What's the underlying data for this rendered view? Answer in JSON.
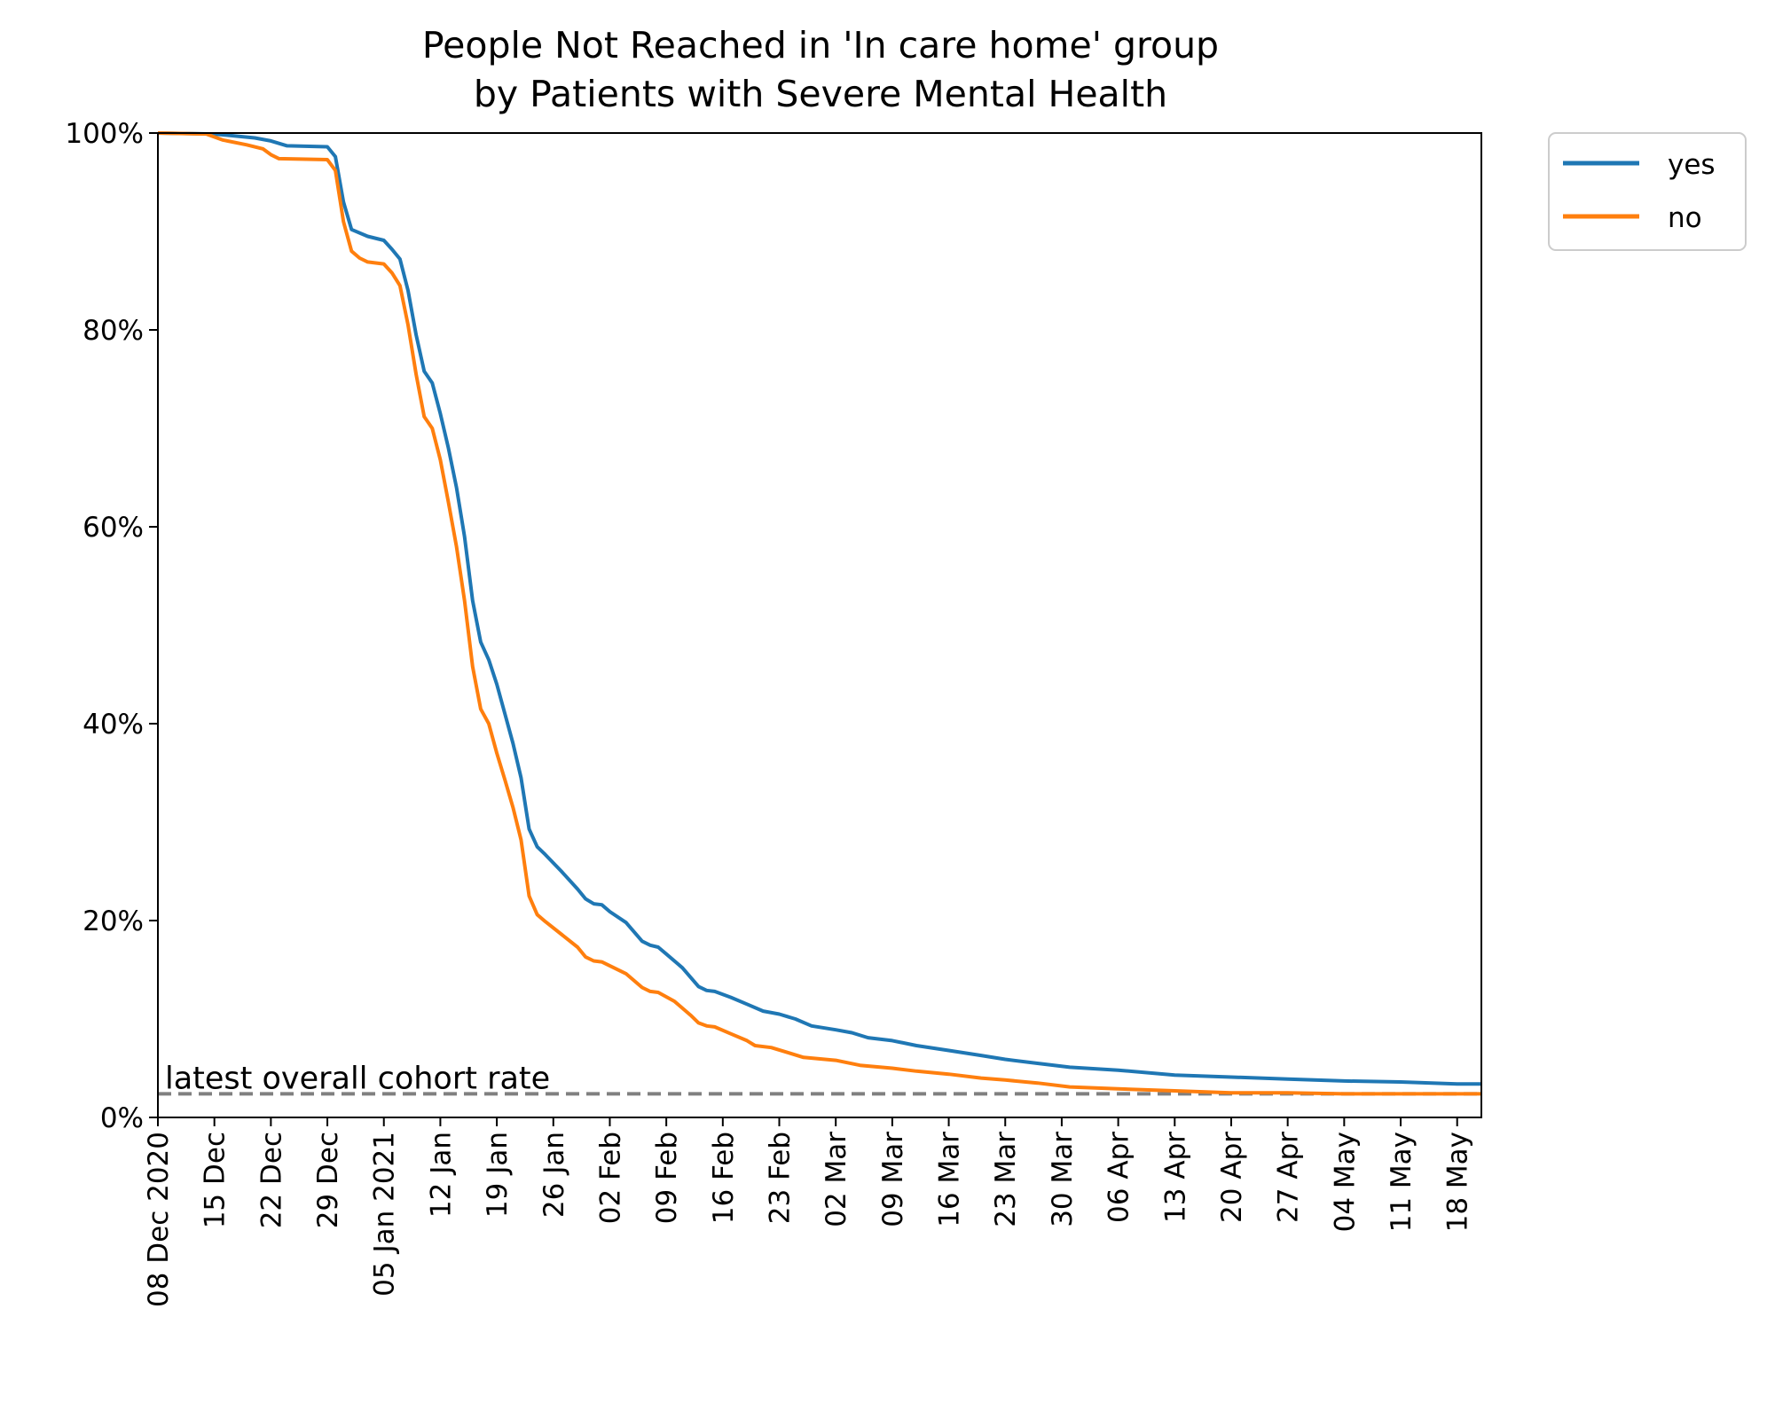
{
  "chart_data": {
    "type": "line",
    "title": [
      "People Not Reached in 'In care home' group",
      "by Patients with Severe Mental Health"
    ],
    "xlabel": "",
    "ylabel": "",
    "x_range": [
      "2020-12-08",
      "2021-05-21"
    ],
    "ylim": [
      0,
      100
    ],
    "y_unit": "%",
    "y_ticks": [
      {
        "value": 0,
        "label": "0%"
      },
      {
        "value": 20,
        "label": "20%"
      },
      {
        "value": 40,
        "label": "40%"
      },
      {
        "value": 60,
        "label": "60%"
      },
      {
        "value": 80,
        "label": "80%"
      },
      {
        "value": 100,
        "label": "100%"
      }
    ],
    "x_ticks": [
      {
        "date": "2020-12-08",
        "label": "08 Dec 2020"
      },
      {
        "date": "2020-12-15",
        "label": "15 Dec"
      },
      {
        "date": "2020-12-22",
        "label": "22 Dec"
      },
      {
        "date": "2020-12-29",
        "label": "29 Dec"
      },
      {
        "date": "2021-01-05",
        "label": "05 Jan 2021"
      },
      {
        "date": "2021-01-12",
        "label": "12 Jan"
      },
      {
        "date": "2021-01-19",
        "label": "19 Jan"
      },
      {
        "date": "2021-01-26",
        "label": "26 Jan"
      },
      {
        "date": "2021-02-02",
        "label": "02 Feb"
      },
      {
        "date": "2021-02-09",
        "label": "09 Feb"
      },
      {
        "date": "2021-02-16",
        "label": "16 Feb"
      },
      {
        "date": "2021-02-23",
        "label": "23 Feb"
      },
      {
        "date": "2021-03-02",
        "label": "02 Mar"
      },
      {
        "date": "2021-03-09",
        "label": "09 Mar"
      },
      {
        "date": "2021-03-16",
        "label": "16 Mar"
      },
      {
        "date": "2021-03-23",
        "label": "23 Mar"
      },
      {
        "date": "2021-03-30",
        "label": "30 Mar"
      },
      {
        "date": "2021-04-06",
        "label": "06 Apr"
      },
      {
        "date": "2021-04-13",
        "label": "13 Apr"
      },
      {
        "date": "2021-04-20",
        "label": "20 Apr"
      },
      {
        "date": "2021-04-27",
        "label": "27 Apr"
      },
      {
        "date": "2021-05-04",
        "label": "04 May"
      },
      {
        "date": "2021-05-11",
        "label": "11 May"
      },
      {
        "date": "2021-05-18",
        "label": "18 May"
      }
    ],
    "grid": false,
    "legend": {
      "placement": "outside-top-right"
    },
    "series": [
      {
        "name": "yes",
        "color": "#1f77b4",
        "points": [
          [
            "2020-12-08",
            100
          ],
          [
            "2020-12-15",
            99.9
          ],
          [
            "2020-12-20",
            99.5
          ],
          [
            "2020-12-22",
            99.2
          ],
          [
            "2020-12-24",
            98.7
          ],
          [
            "2020-12-29",
            98.6
          ],
          [
            "2020-12-30",
            97.6
          ],
          [
            "2020-12-31",
            93.0
          ],
          [
            "2021-01-01",
            90.2
          ],
          [
            "2021-01-03",
            89.5
          ],
          [
            "2021-01-05",
            89.1
          ],
          [
            "2021-01-06",
            88.2
          ],
          [
            "2021-01-07",
            87.2
          ],
          [
            "2021-01-08",
            84.0
          ],
          [
            "2021-01-09",
            79.5
          ],
          [
            "2021-01-10",
            75.8
          ],
          [
            "2021-01-11",
            74.6
          ],
          [
            "2021-01-12",
            71.5
          ],
          [
            "2021-01-13",
            68.0
          ],
          [
            "2021-01-14",
            64.0
          ],
          [
            "2021-01-15",
            59.0
          ],
          [
            "2021-01-16",
            52.5
          ],
          [
            "2021-01-17",
            48.3
          ],
          [
            "2021-01-18",
            46.5
          ],
          [
            "2021-01-19",
            44.0
          ],
          [
            "2021-01-20",
            41.0
          ],
          [
            "2021-01-21",
            38.0
          ],
          [
            "2021-01-22",
            34.5
          ],
          [
            "2021-01-23",
            29.3
          ],
          [
            "2021-01-24",
            27.5
          ],
          [
            "2021-01-25",
            26.7
          ],
          [
            "2021-01-27",
            25.0
          ],
          [
            "2021-01-29",
            23.2
          ],
          [
            "2021-01-30",
            22.2
          ],
          [
            "2021-01-31",
            21.7
          ],
          [
            "2021-02-01",
            21.6
          ],
          [
            "2021-02-02",
            20.9
          ],
          [
            "2021-02-04",
            19.8
          ],
          [
            "2021-02-06",
            17.9
          ],
          [
            "2021-02-07",
            17.5
          ],
          [
            "2021-02-08",
            17.3
          ],
          [
            "2021-02-09",
            16.6
          ],
          [
            "2021-02-11",
            15.2
          ],
          [
            "2021-02-13",
            13.3
          ],
          [
            "2021-02-14",
            12.9
          ],
          [
            "2021-02-15",
            12.8
          ],
          [
            "2021-02-17",
            12.2
          ],
          [
            "2021-02-19",
            11.5
          ],
          [
            "2021-02-21",
            10.8
          ],
          [
            "2021-02-23",
            10.5
          ],
          [
            "2021-02-25",
            10.0
          ],
          [
            "2021-02-27",
            9.3
          ],
          [
            "2021-03-02",
            8.9
          ],
          [
            "2021-03-04",
            8.6
          ],
          [
            "2021-03-06",
            8.1
          ],
          [
            "2021-03-09",
            7.8
          ],
          [
            "2021-03-12",
            7.3
          ],
          [
            "2021-03-16",
            6.8
          ],
          [
            "2021-03-20",
            6.3
          ],
          [
            "2021-03-23",
            5.9
          ],
          [
            "2021-03-27",
            5.5
          ],
          [
            "2021-03-31",
            5.1
          ],
          [
            "2021-04-06",
            4.8
          ],
          [
            "2021-04-13",
            4.3
          ],
          [
            "2021-04-20",
            4.1
          ],
          [
            "2021-04-27",
            3.9
          ],
          [
            "2021-05-04",
            3.7
          ],
          [
            "2021-05-11",
            3.6
          ],
          [
            "2021-05-18",
            3.4
          ],
          [
            "2021-05-21",
            3.4
          ]
        ]
      },
      {
        "name": "no",
        "color": "#ff7f0e",
        "points": [
          [
            "2020-12-08",
            100
          ],
          [
            "2020-12-14",
            99.9
          ],
          [
            "2020-12-16",
            99.3
          ],
          [
            "2020-12-19",
            98.8
          ],
          [
            "2020-12-21",
            98.4
          ],
          [
            "2020-12-22",
            97.8
          ],
          [
            "2020-12-23",
            97.4
          ],
          [
            "2020-12-29",
            97.3
          ],
          [
            "2020-12-30",
            96.2
          ],
          [
            "2020-12-31",
            91.0
          ],
          [
            "2021-01-01",
            88.0
          ],
          [
            "2021-01-02",
            87.3
          ],
          [
            "2021-01-03",
            86.9
          ],
          [
            "2021-01-05",
            86.7
          ],
          [
            "2021-01-06",
            85.8
          ],
          [
            "2021-01-07",
            84.5
          ],
          [
            "2021-01-08",
            80.5
          ],
          [
            "2021-01-09",
            75.5
          ],
          [
            "2021-01-10",
            71.2
          ],
          [
            "2021-01-11",
            70.0
          ],
          [
            "2021-01-12",
            66.8
          ],
          [
            "2021-01-13",
            62.5
          ],
          [
            "2021-01-14",
            58.0
          ],
          [
            "2021-01-15",
            52.5
          ],
          [
            "2021-01-16",
            45.8
          ],
          [
            "2021-01-17",
            41.5
          ],
          [
            "2021-01-18",
            40.0
          ],
          [
            "2021-01-19",
            37.0
          ],
          [
            "2021-01-20",
            34.3
          ],
          [
            "2021-01-21",
            31.5
          ],
          [
            "2021-01-22",
            28.2
          ],
          [
            "2021-01-23",
            22.5
          ],
          [
            "2021-01-24",
            20.6
          ],
          [
            "2021-01-25",
            19.9
          ],
          [
            "2021-01-27",
            18.6
          ],
          [
            "2021-01-29",
            17.3
          ],
          [
            "2021-01-30",
            16.3
          ],
          [
            "2021-01-31",
            15.9
          ],
          [
            "2021-02-01",
            15.8
          ],
          [
            "2021-02-04",
            14.6
          ],
          [
            "2021-02-06",
            13.2
          ],
          [
            "2021-02-07",
            12.8
          ],
          [
            "2021-02-08",
            12.7
          ],
          [
            "2021-02-10",
            11.8
          ],
          [
            "2021-02-12",
            10.4
          ],
          [
            "2021-02-13",
            9.6
          ],
          [
            "2021-02-14",
            9.3
          ],
          [
            "2021-02-15",
            9.2
          ],
          [
            "2021-02-17",
            8.5
          ],
          [
            "2021-02-19",
            7.8
          ],
          [
            "2021-02-20",
            7.3
          ],
          [
            "2021-02-22",
            7.1
          ],
          [
            "2021-02-24",
            6.6
          ],
          [
            "2021-02-26",
            6.1
          ],
          [
            "2021-03-02",
            5.8
          ],
          [
            "2021-03-05",
            5.3
          ],
          [
            "2021-03-09",
            5.0
          ],
          [
            "2021-03-12",
            4.7
          ],
          [
            "2021-03-16",
            4.4
          ],
          [
            "2021-03-20",
            4.0
          ],
          [
            "2021-03-23",
            3.8
          ],
          [
            "2021-03-27",
            3.5
          ],
          [
            "2021-03-31",
            3.1
          ],
          [
            "2021-04-06",
            2.9
          ],
          [
            "2021-04-13",
            2.7
          ],
          [
            "2021-04-20",
            2.5
          ],
          [
            "2021-04-27",
            2.5
          ],
          [
            "2021-05-04",
            2.4
          ],
          [
            "2021-05-11",
            2.4
          ],
          [
            "2021-05-18",
            2.4
          ],
          [
            "2021-05-21",
            2.4
          ]
        ]
      }
    ],
    "reference_line": {
      "label": "latest overall cohort rate",
      "value": 2.4,
      "color": "#808080",
      "style": "dashed"
    }
  }
}
